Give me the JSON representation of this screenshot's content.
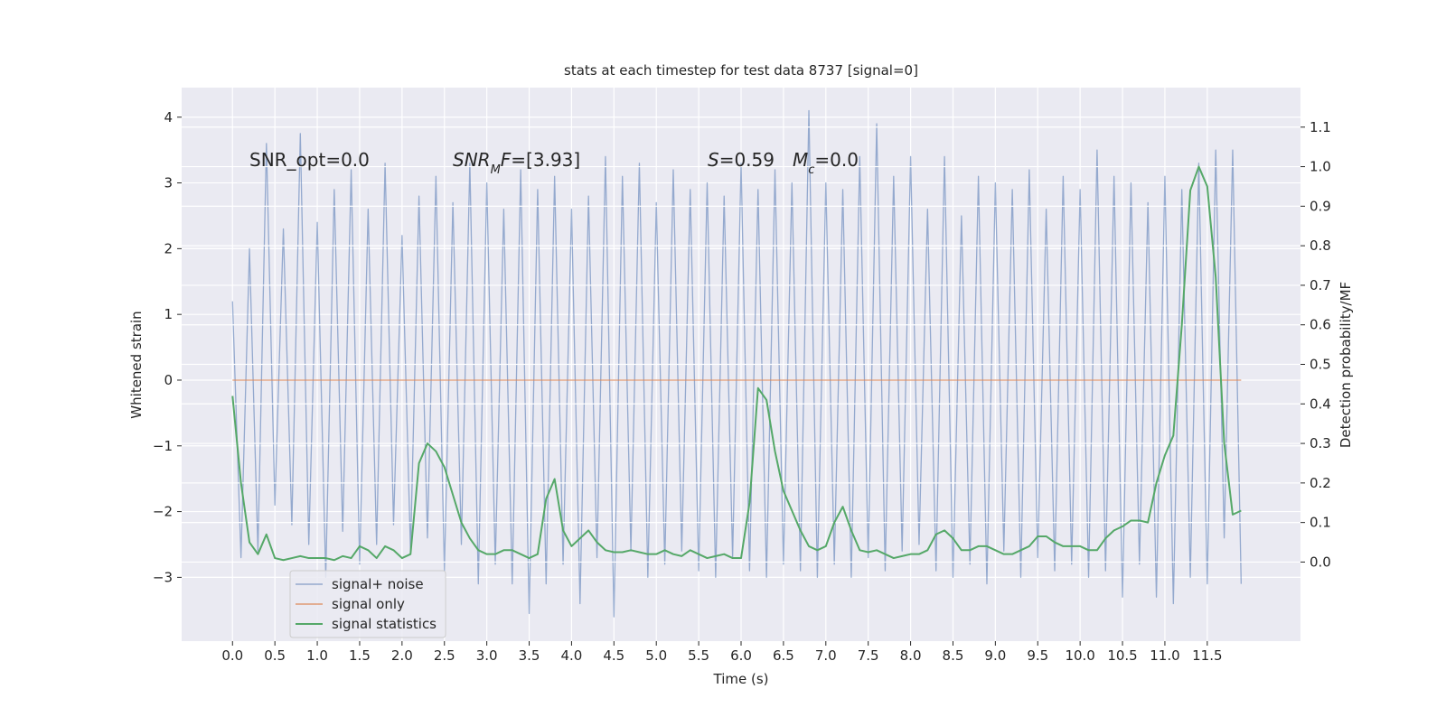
{
  "chart_data": {
    "type": "line",
    "title": "stats at each timestep for test data 8737 [signal=0]",
    "x_label": "Time (s)",
    "y_label": "Whitened strain",
    "y2_label": "Detection probability/MF",
    "annotations": [
      [
        {
          "text": "SNR_opt=0.0",
          "style": "normal"
        }
      ],
      [
        {
          "text": "SNR",
          "style": "italic"
        },
        {
          "text": "M",
          "style": "sub"
        },
        {
          "text": "F",
          "style": "italic"
        },
        {
          "text": "=[3.93]",
          "style": "normal"
        }
      ],
      [
        {
          "text": "S",
          "style": "italic"
        },
        {
          "text": "=0.59",
          "style": "normal"
        }
      ],
      [
        {
          "text": "M",
          "style": "italic"
        },
        {
          "text": "c",
          "style": "sub"
        },
        {
          "text": "=0.0",
          "style": "normal"
        }
      ]
    ],
    "x": [
      0,
      0.1,
      0.2,
      0.3,
      0.4,
      0.5,
      0.6,
      0.7,
      0.8,
      0.9,
      1,
      1.1,
      1.2,
      1.3,
      1.4,
      1.5,
      1.6,
      1.7,
      1.8,
      1.9,
      2,
      2.1,
      2.2,
      2.3,
      2.4,
      2.5,
      2.6,
      2.7,
      2.8,
      2.9,
      3,
      3.1,
      3.2,
      3.3,
      3.4,
      3.5,
      3.6,
      3.7,
      3.8,
      3.9,
      4,
      4.1,
      4.2,
      4.3,
      4.4,
      4.5,
      4.6,
      4.7,
      4.8,
      4.9,
      5,
      5.1,
      5.2,
      5.3,
      5.4,
      5.5,
      5.6,
      5.7,
      5.8,
      5.9,
      6,
      6.1,
      6.2,
      6.3,
      6.4,
      6.5,
      6.6,
      6.7,
      6.8,
      6.9,
      7,
      7.1,
      7.2,
      7.3,
      7.4,
      7.5,
      7.6,
      7.7,
      7.8,
      7.9,
      8,
      8.1,
      8.2,
      8.3,
      8.4,
      8.5,
      8.6,
      8.7,
      8.8,
      8.9,
      9,
      9.1,
      9.2,
      9.3,
      9.4,
      9.5,
      9.6,
      9.7,
      9.8,
      9.9,
      10,
      10.1,
      10.2,
      10.3,
      10.4,
      10.5,
      10.6,
      10.7,
      10.8,
      10.9,
      11,
      11.1,
      11.2,
      11.3,
      11.4,
      11.5,
      11.6,
      11.7,
      11.8,
      11.9
    ],
    "series": [
      {
        "name": "signal+ noise",
        "color": "#4c72b0",
        "opacity": 0.55,
        "axis": "y",
        "values": [
          1.2,
          -2.7,
          2.0,
          -2.6,
          3.6,
          -1.9,
          2.3,
          -2.2,
          3.75,
          -2.5,
          2.4,
          -3.0,
          2.9,
          -2.3,
          3.2,
          -2.8,
          2.6,
          -2.5,
          3.3,
          -2.2,
          2.2,
          -2.6,
          2.8,
          -2.4,
          3.1,
          -2.9,
          2.7,
          -2.5,
          3.3,
          -3.1,
          3.0,
          -2.8,
          2.6,
          -3.1,
          3.2,
          -3.55,
          2.9,
          -3.1,
          3.1,
          -2.8,
          2.6,
          -3.4,
          2.8,
          -2.7,
          3.4,
          -3.6,
          3.1,
          -2.6,
          3.3,
          -3.0,
          2.7,
          -2.8,
          3.2,
          -2.6,
          2.9,
          -2.9,
          3.0,
          -3.0,
          2.8,
          -2.7,
          3.3,
          -2.9,
          2.9,
          -3.0,
          3.2,
          -2.8,
          3.0,
          -2.9,
          4.1,
          -3.0,
          3.0,
          -2.8,
          2.9,
          -3.0,
          3.4,
          -2.7,
          3.9,
          -2.9,
          3.1,
          -2.6,
          3.4,
          -2.5,
          2.6,
          -2.9,
          3.4,
          -3.0,
          2.5,
          -2.8,
          3.1,
          -3.1,
          3.0,
          -2.6,
          2.9,
          -3.0,
          3.2,
          -2.7,
          2.6,
          -2.9,
          3.1,
          -2.8,
          2.9,
          -3.0,
          3.5,
          -2.9,
          3.1,
          -3.3,
          3.0,
          -2.8,
          2.7,
          -3.3,
          3.1,
          -3.4,
          2.9,
          -3.0,
          3.3,
          -3.1,
          3.5,
          -2.4,
          3.5,
          -3.1
        ]
      },
      {
        "name": "signal only",
        "color": "#dd8452",
        "opacity": 0.8,
        "axis": "y",
        "values": [
          0,
          0,
          0,
          0,
          0,
          0,
          0,
          0,
          0,
          0,
          0,
          0,
          0,
          0,
          0,
          0,
          0,
          0,
          0,
          0,
          0,
          0,
          0,
          0,
          0,
          0,
          0,
          0,
          0,
          0,
          0,
          0,
          0,
          0,
          0,
          0,
          0,
          0,
          0,
          0,
          0,
          0,
          0,
          0,
          0,
          0,
          0,
          0,
          0,
          0,
          0,
          0,
          0,
          0,
          0,
          0,
          0,
          0,
          0,
          0,
          0,
          0,
          0,
          0,
          0,
          0,
          0,
          0,
          0,
          0,
          0,
          0,
          0,
          0,
          0,
          0,
          0,
          0,
          0,
          0,
          0,
          0,
          0,
          0,
          0,
          0,
          0,
          0,
          0,
          0,
          0,
          0,
          0,
          0,
          0,
          0,
          0,
          0,
          0,
          0,
          0,
          0,
          0,
          0,
          0,
          0,
          0,
          0,
          0,
          0,
          0,
          0,
          0,
          0,
          0,
          0,
          0,
          0,
          0,
          0
        ]
      },
      {
        "name": "signal statistics",
        "color": "#55a868",
        "opacity": 1,
        "axis": "y2",
        "values": [
          0.42,
          0.2,
          0.05,
          0.02,
          0.07,
          0.01,
          0.005,
          0.01,
          0.015,
          0.01,
          0.01,
          0.01,
          0.005,
          0.015,
          0.01,
          0.04,
          0.03,
          0.01,
          0.04,
          0.03,
          0.01,
          0.02,
          0.25,
          0.3,
          0.28,
          0.24,
          0.17,
          0.1,
          0.06,
          0.03,
          0.02,
          0.02,
          0.03,
          0.03,
          0.02,
          0.01,
          0.02,
          0.16,
          0.21,
          0.08,
          0.04,
          0.06,
          0.08,
          0.05,
          0.03,
          0.025,
          0.025,
          0.03,
          0.025,
          0.02,
          0.02,
          0.03,
          0.02,
          0.015,
          0.03,
          0.02,
          0.01,
          0.015,
          0.02,
          0.01,
          0.01,
          0.15,
          0.44,
          0.41,
          0.28,
          0.18,
          0.13,
          0.08,
          0.04,
          0.03,
          0.04,
          0.1,
          0.14,
          0.08,
          0.03,
          0.025,
          0.03,
          0.02,
          0.01,
          0.015,
          0.02,
          0.02,
          0.03,
          0.07,
          0.08,
          0.06,
          0.03,
          0.03,
          0.04,
          0.04,
          0.03,
          0.02,
          0.02,
          0.03,
          0.04,
          0.065,
          0.065,
          0.05,
          0.04,
          0.04,
          0.04,
          0.03,
          0.03,
          0.06,
          0.08,
          0.09,
          0.105,
          0.105,
          0.1,
          0.2,
          0.27,
          0.32,
          0.6,
          0.94,
          1.0,
          0.95,
          0.72,
          0.3,
          0.12,
          0.13
        ]
      }
    ],
    "xlim": [
      -0.6,
      12.6
    ],
    "ylim": [
      -3.97,
      4.45
    ],
    "y2lim": [
      -0.2,
      1.2
    ],
    "xticks": [
      {
        "value": 0,
        "label": "0.0"
      },
      0.5,
      {
        "value": 1,
        "label": "1.0"
      },
      1.5,
      {
        "value": 2,
        "label": "2.0"
      },
      2.5,
      {
        "value": 3,
        "label": "3.0"
      },
      3.5,
      {
        "value": 4,
        "label": "4.0"
      },
      4.5,
      {
        "value": 5,
        "label": "5.0"
      },
      5.5,
      {
        "value": 6,
        "label": "6.0"
      },
      6.5,
      {
        "value": 7,
        "label": "7.0"
      },
      7.5,
      {
        "value": 8,
        "label": "8.0"
      },
      8.5,
      {
        "value": 9,
        "label": "9.0"
      },
      9.5,
      {
        "value": 10,
        "label": "10.0"
      },
      10.5,
      {
        "value": 11,
        "label": "11.0"
      },
      11.5
    ],
    "yticks": [
      {
        "value": -3,
        "label": "−3"
      },
      {
        "value": -2,
        "label": "−2"
      },
      {
        "value": -1,
        "label": "−1"
      },
      0,
      1,
      2,
      3,
      4
    ],
    "y2ticks": [
      {
        "value": 0,
        "label": "0.0"
      },
      0.1,
      0.2,
      0.3,
      0.4,
      0.5,
      0.6,
      0.7,
      0.8,
      0.9,
      {
        "value": 1,
        "label": "1.0"
      },
      1.1
    ],
    "grid": true,
    "legend": "lower left"
  }
}
